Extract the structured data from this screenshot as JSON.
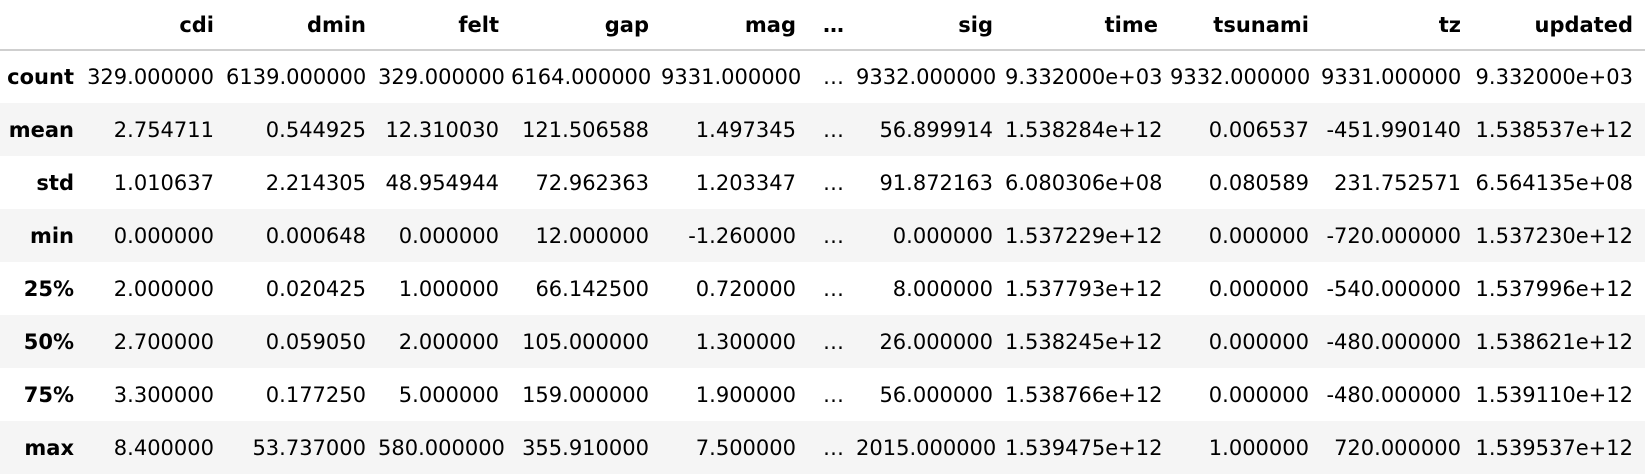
{
  "table": {
    "index_header": "",
    "columns": [
      "cdi",
      "dmin",
      "felt",
      "gap",
      "mag",
      "…",
      "sig",
      "time",
      "tsunami",
      "tz",
      "updated"
    ],
    "rows": [
      {
        "label": "count",
        "cells": [
          "329.000000",
          "6139.000000",
          "329.000000",
          "6164.000000",
          "9331.000000",
          "…",
          "9332.000000",
          "9.332000e+03",
          "9332.000000",
          "9331.000000",
          "9.332000e+03"
        ]
      },
      {
        "label": "mean",
        "cells": [
          "2.754711",
          "0.544925",
          "12.310030",
          "121.506588",
          "1.497345",
          "…",
          "56.899914",
          "1.538284e+12",
          "0.006537",
          "-451.990140",
          "1.538537e+12"
        ]
      },
      {
        "label": "std",
        "cells": [
          "1.010637",
          "2.214305",
          "48.954944",
          "72.962363",
          "1.203347",
          "…",
          "91.872163",
          "6.080306e+08",
          "0.080589",
          "231.752571",
          "6.564135e+08"
        ]
      },
      {
        "label": "min",
        "cells": [
          "0.000000",
          "0.000648",
          "0.000000",
          "12.000000",
          "-1.260000",
          "…",
          "0.000000",
          "1.537229e+12",
          "0.000000",
          "-720.000000",
          "1.537230e+12"
        ]
      },
      {
        "label": "25%",
        "cells": [
          "2.000000",
          "0.020425",
          "1.000000",
          "66.142500",
          "0.720000",
          "…",
          "8.000000",
          "1.537793e+12",
          "0.000000",
          "-540.000000",
          "1.537996e+12"
        ]
      },
      {
        "label": "50%",
        "cells": [
          "2.700000",
          "0.059050",
          "2.000000",
          "105.000000",
          "1.300000",
          "…",
          "26.000000",
          "1.538245e+12",
          "0.000000",
          "-480.000000",
          "1.538621e+12"
        ]
      },
      {
        "label": "75%",
        "cells": [
          "3.300000",
          "0.177250",
          "5.000000",
          "159.000000",
          "1.900000",
          "…",
          "56.000000",
          "1.538766e+12",
          "0.000000",
          "-480.000000",
          "1.539110e+12"
        ]
      },
      {
        "label": "max",
        "cells": [
          "8.400000",
          "53.737000",
          "580.000000",
          "355.910000",
          "7.500000",
          "…",
          "2015.000000",
          "1.539475e+12",
          "1.000000",
          "720.000000",
          "1.539537e+12"
        ]
      }
    ]
  }
}
